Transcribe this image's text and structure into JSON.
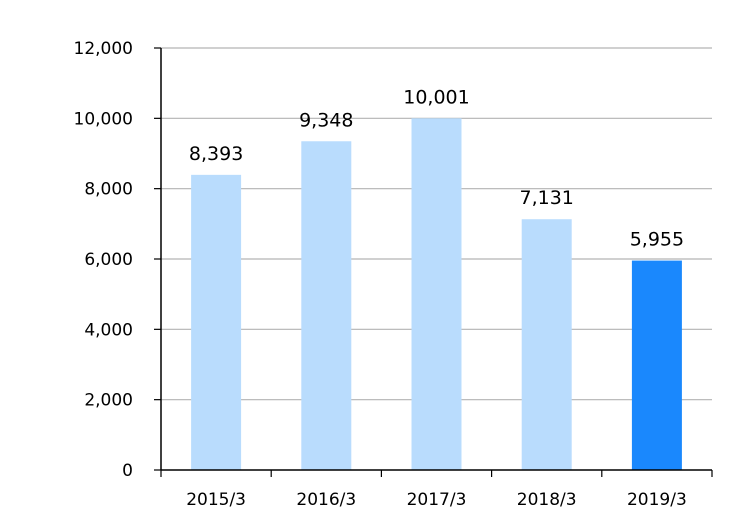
{
  "chart_data": {
    "type": "bar",
    "categories": [
      "2015/3",
      "2016/3",
      "2017/3",
      "2018/3",
      "2019/3"
    ],
    "values": [
      8393,
      9348,
      10001,
      7131,
      5955
    ],
    "value_labels": [
      "8,393",
      "9,348",
      "10,001",
      "7,131",
      "5,955"
    ],
    "yticks": [
      0,
      2000,
      4000,
      6000,
      8000,
      10000,
      12000
    ],
    "ytick_labels": [
      "0",
      "2,000",
      "4,000",
      "6,000",
      "8,000",
      "10,000",
      "12,000"
    ],
    "ylim": [
      0,
      12000
    ],
    "grid": true,
    "title": "",
    "xlabel": "",
    "ylabel": "",
    "colors": {
      "bar": "#b9dcfd",
      "highlight_bar": "#1a88fd",
      "grid": "#b3b3b3",
      "axis": "#000000"
    },
    "highlight_index": 4
  }
}
